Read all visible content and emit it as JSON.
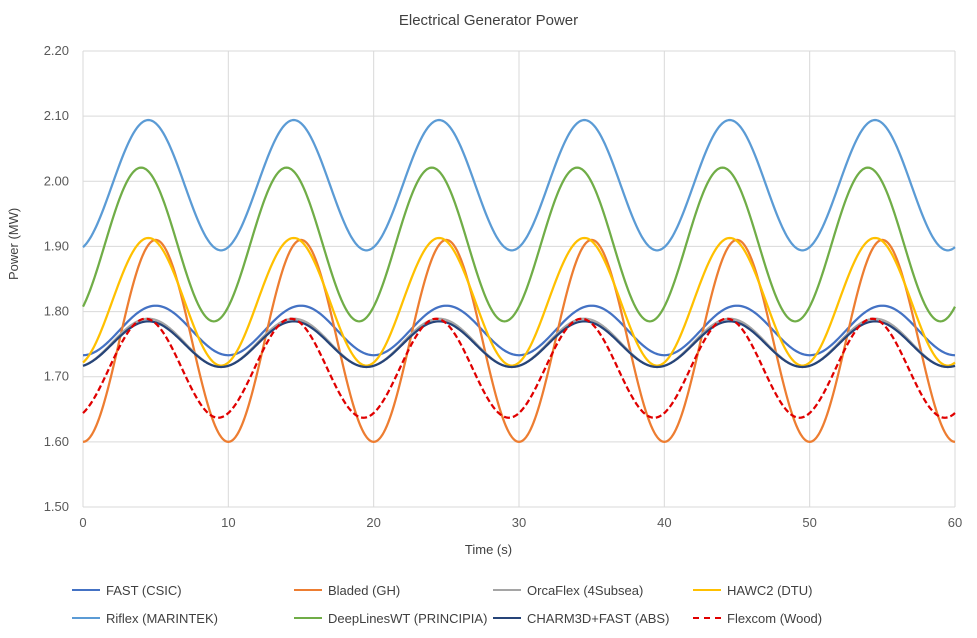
{
  "chart_data": {
    "type": "line",
    "title": "Electrical Generator Power",
    "xlabel": "Time (s)",
    "ylabel": "Power (MW)",
    "xlim": [
      0,
      60
    ],
    "ylim": [
      1.5,
      2.2
    ],
    "x_ticks": [
      "0",
      "10",
      "20",
      "30",
      "40",
      "50",
      "60"
    ],
    "y_ticks": [
      "1.50",
      "1.60",
      "1.70",
      "1.80",
      "1.90",
      "2.00",
      "2.10",
      "2.20"
    ],
    "grid": "vertical and horizontal",
    "legend_position": "bottom",
    "series": [
      {
        "name": "FAST (CSIC)",
        "color": "#4472C4",
        "dash": "solid",
        "mean": 1.771,
        "amplitude": 0.038,
        "period_s": 10,
        "peak_time_s": 5.0
      },
      {
        "name": "Bladed (GH)",
        "color": "#ED7D31",
        "dash": "solid",
        "mean": 1.755,
        "amplitude": 0.155,
        "period_s": 10,
        "peak_time_s": 5.0
      },
      {
        "name": "OrcaFlex (4Subsea)",
        "color": "#A5A5A5",
        "dash": "solid",
        "mean": 1.752,
        "amplitude": 0.037,
        "period_s": 10,
        "peak_time_s": 4.5
      },
      {
        "name": "HAWC2 (DTU)",
        "color": "#FFC000",
        "dash": "solid",
        "mean": 1.815,
        "amplitude": 0.098,
        "period_s": 10,
        "peak_time_s": 4.5
      },
      {
        "name": "Riflex (MARINTEK)",
        "color": "#5B9BD5",
        "dash": "solid",
        "mean": 1.994,
        "amplitude": 0.1,
        "period_s": 10,
        "peak_time_s": 4.5
      },
      {
        "name": "DeepLinesWT (PRINCIPIA)",
        "color": "#70AD47",
        "dash": "solid",
        "mean": 1.903,
        "amplitude": 0.118,
        "period_s": 10,
        "peak_time_s": 4.0
      },
      {
        "name": "CHARM3D+FAST (ABS)",
        "color": "#264478",
        "dash": "solid",
        "mean": 1.75,
        "amplitude": 0.035,
        "period_s": 10,
        "peak_time_s": 4.5
      },
      {
        "name": "Flexcom (Wood)",
        "color": "#E00000",
        "dash": "dashed",
        "mean": 1.713,
        "amplitude": 0.076,
        "period_s": 10,
        "peak_time_s": 4.3
      }
    ]
  }
}
